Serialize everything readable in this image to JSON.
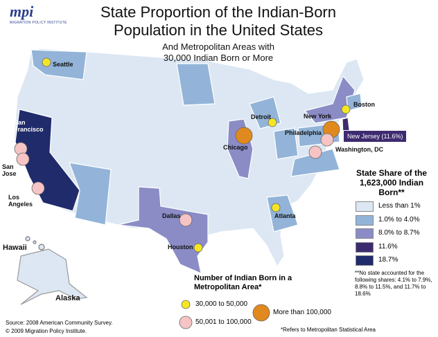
{
  "logo": {
    "mark": "mpi",
    "subtitle": "MIGRATION POLICY INSTITUTE"
  },
  "title": "State Proportion of the Indian-Born Population in the United States",
  "subtitle": "And Metropolitan Areas with 30,000 Indian Born or More",
  "state_legend": {
    "title": "State Share of the 1,623,000 Indian Born**",
    "items": [
      {
        "label": "Less than 1%",
        "color": "#dce7f3"
      },
      {
        "label": "1.0% to 4.0%",
        "color": "#93b4d8"
      },
      {
        "label": "8.0% to 8.7%",
        "color": "#8b8cc6"
      },
      {
        "label": "11.6%",
        "color": "#3d2b70"
      },
      {
        "label": "18.7%",
        "color": "#1f2b6b"
      }
    ]
  },
  "note": "**No state accounted for the following shares: 4.1% to 7.9%, 8.8% to 11.5%, and 11.7% to 18.6%",
  "metro_legend": {
    "title": "Number of Indian Born in a Metropolitan Area*",
    "items": [
      {
        "label": "30,000 to 50,000",
        "color": "#f5e625"
      },
      {
        "label": "50,001 to 100,000",
        "color": "#f6c4c4"
      },
      {
        "label": "More than 100,000",
        "color": "#e0891e"
      }
    ]
  },
  "metro_note": "*Refers to Metropolitan Statistical Area",
  "callout": "New Jersey (11.6%)",
  "places": [
    "Hawaii",
    "Alaska"
  ],
  "cities": [
    "Seattle",
    "San Francisco",
    "San Jose",
    "Los Angeles",
    "Dallas",
    "Houston",
    "Atlanta",
    "Chicago",
    "Detroit",
    "New York",
    "Philadelphia",
    "Washington, DC",
    "Boston"
  ],
  "source": "Source: 2008 American Community Survey.",
  "copyright": "© 2009 Migration Policy Institute."
}
